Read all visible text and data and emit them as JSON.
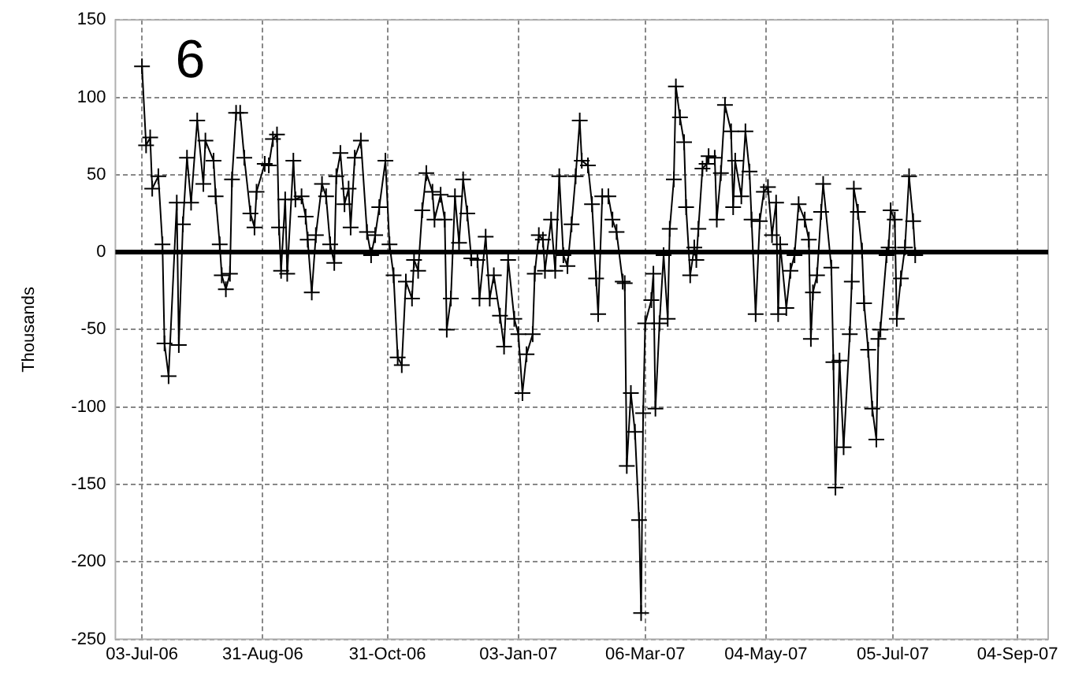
{
  "chart_data": {
    "type": "line",
    "ylabel": "Thousands",
    "annotations": [
      "6"
    ],
    "x": [
      "2006-07-03",
      "2006-07-05",
      "2006-07-07",
      "2006-07-08",
      "2006-07-11",
      "2006-07-13",
      "2006-07-14",
      "2006-07-16",
      "2006-07-20",
      "2006-07-21",
      "2006-07-23",
      "2006-07-25",
      "2006-07-27",
      "2006-07-30",
      "2006-08-02",
      "2006-08-03",
      "2006-08-07",
      "2006-08-08",
      "2006-08-10",
      "2006-08-11",
      "2006-08-13",
      "2006-08-15",
      "2006-08-16",
      "2006-08-18",
      "2006-08-20",
      "2006-08-22",
      "2006-08-25",
      "2006-08-27",
      "2006-08-28",
      "2006-09-01",
      "2006-09-03",
      "2006-09-05",
      "2006-09-07",
      "2006-09-08",
      "2006-09-09",
      "2006-09-11",
      "2006-09-12",
      "2006-09-15",
      "2006-09-16",
      "2006-09-19",
      "2006-09-21",
      "2006-09-22",
      "2006-09-24",
      "2006-09-26",
      "2006-09-29",
      "2006-10-01",
      "2006-10-03",
      "2006-10-05",
      "2006-10-06",
      "2006-10-08",
      "2006-10-10",
      "2006-10-12",
      "2006-10-13",
      "2006-10-15",
      "2006-10-18",
      "2006-10-21",
      "2006-10-23",
      "2006-10-25",
      "2006-10-27",
      "2006-10-30",
      "2006-11-01",
      "2006-11-03",
      "2006-11-05",
      "2006-11-07",
      "2006-11-09",
      "2006-11-12",
      "2006-11-13",
      "2006-11-15",
      "2006-11-17",
      "2006-11-19",
      "2006-11-22",
      "2006-11-23",
      "2006-11-26",
      "2006-11-28",
      "2006-11-29",
      "2006-12-01",
      "2006-12-03",
      "2006-12-05",
      "2006-12-07",
      "2006-12-09",
      "2006-12-11",
      "2006-12-14",
      "2006-12-15",
      "2006-12-18",
      "2006-12-20",
      "2006-12-22",
      "2006-12-25",
      "2006-12-27",
      "2006-12-29",
      "2007-01-01",
      "2007-01-03",
      "2007-01-05",
      "2007-01-07",
      "2007-01-10",
      "2007-01-11",
      "2007-01-13",
      "2007-01-15",
      "2007-01-16",
      "2007-01-19",
      "2007-01-21",
      "2007-01-23",
      "2007-01-25",
      "2007-01-27",
      "2007-01-29",
      "2007-01-31",
      "2007-02-02",
      "2007-02-03",
      "2007-02-06",
      "2007-02-08",
      "2007-02-10",
      "2007-02-11",
      "2007-02-13",
      "2007-02-16",
      "2007-02-18",
      "2007-02-20",
      "2007-02-23",
      "2007-02-24",
      "2007-02-25",
      "2007-02-27",
      "2007-03-01",
      "2007-03-03",
      "2007-03-04",
      "2007-03-05",
      "2007-03-06",
      "2007-03-09",
      "2007-03-10",
      "2007-03-11",
      "2007-03-13",
      "2007-03-15",
      "2007-03-17",
      "2007-03-18",
      "2007-03-20",
      "2007-03-21",
      "2007-03-23",
      "2007-03-25",
      "2007-03-26",
      "2007-03-28",
      "2007-03-30",
      "2007-03-31",
      "2007-04-01",
      "2007-04-03",
      "2007-04-05",
      "2007-04-06",
      "2007-04-09",
      "2007-04-10",
      "2007-04-12",
      "2007-04-14",
      "2007-04-17",
      "2007-04-18",
      "2007-04-19",
      "2007-04-22",
      "2007-04-24",
      "2007-04-26",
      "2007-04-27",
      "2007-04-29",
      "2007-05-01",
      "2007-05-03",
      "2007-05-05",
      "2007-05-07",
      "2007-05-09",
      "2007-05-10",
      "2007-05-11",
      "2007-05-14",
      "2007-05-16",
      "2007-05-18",
      "2007-05-20",
      "2007-05-23",
      "2007-05-25",
      "2007-05-26",
      "2007-05-27",
      "2007-05-29",
      "2007-05-31",
      "2007-06-01",
      "2007-06-05",
      "2007-06-06",
      "2007-06-07",
      "2007-06-09",
      "2007-06-11",
      "2007-06-14",
      "2007-06-15",
      "2007-06-16",
      "2007-06-18",
      "2007-06-20",
      "2007-06-21",
      "2007-06-23",
      "2007-06-25",
      "2007-06-27",
      "2007-06-28",
      "2007-06-29",
      "2007-07-02",
      "2007-07-03",
      "2007-07-04",
      "2007-07-06",
      "2007-07-07",
      "2007-07-09",
      "2007-07-11",
      "2007-07-13",
      "2007-07-15",
      "2007-07-16"
    ],
    "series": [
      {
        "color": "#000000",
        "values": [
          120,
          69,
          74,
          41,
          49,
          5,
          -59,
          -80,
          32,
          -60,
          18,
          61,
          32,
          85,
          44,
          72,
          59,
          36,
          5,
          -15,
          -24,
          -14,
          47,
          90,
          90,
          61,
          25,
          16,
          39,
          57,
          56,
          73,
          76,
          16,
          -12,
          34,
          -14,
          59,
          34,
          36,
          23,
          8,
          -26,
          11,
          44,
          36,
          5,
          -7,
          49,
          64,
          31,
          41,
          16,
          61,
          72,
          13,
          -2,
          11,
          29,
          59,
          5,
          -15,
          -68,
          -73,
          -19,
          -30,
          -5,
          -12,
          27,
          51,
          39,
          21,
          37,
          21,
          -50,
          -30,
          36,
          6,
          47,
          25,
          -4,
          -5,
          -30,
          10,
          -30,
          -15,
          -41,
          -61,
          -5,
          -43,
          -53,
          -91,
          -66,
          -53,
          -14,
          11,
          8,
          -12,
          21,
          -12,
          49,
          -2,
          -9,
          18,
          49,
          85,
          59,
          56,
          31,
          -17,
          -40,
          36,
          36,
          21,
          13,
          -19,
          -20,
          -138,
          -91,
          -116,
          -173,
          -233,
          -104,
          -46,
          -31,
          -14,
          -101,
          -46,
          -2,
          -43,
          15,
          47,
          107,
          87,
          71,
          29,
          -15,
          3,
          -5,
          15,
          54,
          57,
          62,
          61,
          21,
          51,
          95,
          78,
          29,
          59,
          36,
          78,
          52,
          21,
          -40,
          20,
          39,
          42,
          11,
          32,
          -40,
          5,
          -36,
          -12,
          -2,
          31,
          21,
          8,
          -56,
          -26,
          -15,
          26,
          44,
          -10,
          -71,
          -152,
          -70,
          -126,
          -53,
          -19,
          41,
          26,
          1,
          -33,
          -63,
          -101,
          -121,
          -56,
          -50,
          -2,
          3,
          27,
          21,
          -43,
          -17,
          3,
          49,
          20,
          -2
        ]
      }
    ],
    "xlim": [
      "2006-06-20",
      "2007-09-19"
    ],
    "xticks": [
      {
        "value": "2006-07-03",
        "label": "03-Jul-06"
      },
      {
        "value": "2006-08-31",
        "label": "31-Aug-06"
      },
      {
        "value": "2006-10-31",
        "label": "31-Oct-06"
      },
      {
        "value": "2007-01-03",
        "label": "03-Jan-07"
      },
      {
        "value": "2007-03-06",
        "label": "06-Mar-07"
      },
      {
        "value": "2007-05-04",
        "label": "04-May-07"
      },
      {
        "value": "2007-07-05",
        "label": "05-Jul-07"
      },
      {
        "value": "2007-09-04",
        "label": "04-Sep-07"
      }
    ],
    "ylim": [
      -250,
      150
    ],
    "yticks": [
      -250,
      -200,
      -150,
      -100,
      -50,
      0,
      50,
      100,
      150
    ],
    "ref_lines": [
      {
        "axis": "y",
        "value": 0,
        "color": "#000000"
      }
    ],
    "grid": true,
    "legend": false,
    "marker": "cross",
    "line_style": "solid"
  }
}
